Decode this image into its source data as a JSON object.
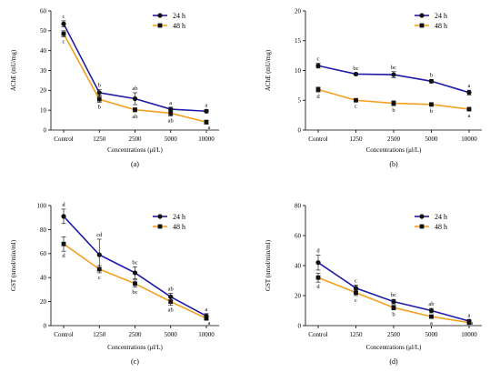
{
  "chart_data": [
    {
      "type": "line",
      "panel_label": "(a)",
      "categories": [
        "Control",
        "1250",
        "2500",
        "5000",
        "10000"
      ],
      "xlabel": "Concentrations (μl/L)",
      "ylabel": "AChE (mU/mg)",
      "ylim": [
        0,
        60
      ],
      "yticks": [
        0,
        10,
        20,
        30,
        40,
        50,
        60
      ],
      "grid": false,
      "legend_position": "top-right",
      "series": [
        {
          "name": "24 h",
          "color": "#1f1aa6",
          "marker": "circle",
          "values": [
            53.5,
            18.8,
            15.8,
            10.5,
            9.5
          ],
          "errors": [
            1.5,
            1.5,
            3.0,
            1.0,
            0.8
          ],
          "letters": [
            "c",
            "b",
            "ab",
            "a",
            "a"
          ]
        },
        {
          "name": "48 h",
          "color": "#f5a020",
          "marker": "square",
          "values": [
            48.5,
            15.5,
            10.2,
            8.5,
            4.0
          ],
          "errors": [
            1.5,
            1.5,
            1.0,
            1.5,
            1.0
          ],
          "letters": [
            "c",
            "b",
            "ab",
            "ab",
            "a"
          ]
        }
      ]
    },
    {
      "type": "line",
      "panel_label": "(b)",
      "categories": [
        "Control",
        "1250",
        "2500",
        "5000",
        "10000"
      ],
      "xlabel": "Concentrations (μl/L)",
      "ylabel": "AChE (mU/mg)",
      "ylim": [
        0,
        20
      ],
      "yticks": [
        0,
        5,
        10,
        15,
        20
      ],
      "grid": false,
      "legend_position": "top-right",
      "series": [
        {
          "name": "24 h",
          "color": "#1f1aa6",
          "marker": "circle",
          "values": [
            10.8,
            9.4,
            9.3,
            8.2,
            6.3
          ],
          "errors": [
            0.4,
            0.2,
            0.5,
            0.3,
            0.4
          ],
          "letters": [
            "c",
            "bc",
            "bc",
            "b",
            "a"
          ]
        },
        {
          "name": "48 h",
          "color": "#f5a020",
          "marker": "square",
          "values": [
            6.8,
            5.0,
            4.5,
            4.3,
            3.5
          ],
          "errors": [
            0.4,
            0.2,
            0.4,
            0.3,
            0.3
          ],
          "letters": [
            "d",
            "c",
            "b",
            "b",
            "a"
          ]
        }
      ]
    },
    {
      "type": "line",
      "panel_label": "(c)",
      "categories": [
        "Control",
        "1250",
        "2500",
        "5000",
        "10000"
      ],
      "xlabel": "Concentrations (μl/L)",
      "ylabel": "GST (nmol/min/ml)",
      "ylim": [
        0,
        100
      ],
      "yticks": [
        0,
        20,
        40,
        60,
        80,
        100
      ],
      "grid": false,
      "legend_position": "top-right",
      "series": [
        {
          "name": "24 h",
          "color": "#1f1aa6",
          "marker": "circle",
          "values": [
            91,
            59,
            44,
            24,
            8
          ],
          "errors": [
            6,
            13,
            5,
            3,
            2
          ],
          "letters": [
            "d",
            "cd",
            "bc",
            "ab",
            "a"
          ]
        },
        {
          "name": "48 h",
          "color": "#f5a020",
          "marker": "square",
          "values": [
            68,
            47,
            35,
            20,
            6
          ],
          "errors": [
            6,
            3,
            3,
            3,
            1
          ],
          "letters": [
            "d",
            "c",
            "bc",
            "ab",
            "a"
          ]
        }
      ]
    },
    {
      "type": "line",
      "panel_label": "(d)",
      "categories": [
        "Control",
        "1250",
        "2500",
        "5000",
        "10000"
      ],
      "xlabel": "Concentrations (μl/L)",
      "ylabel": "GST (nmol/min/ml)",
      "ylim": [
        0,
        80
      ],
      "yticks": [
        0,
        20,
        40,
        60,
        80
      ],
      "grid": false,
      "legend_position": "top-right",
      "series": [
        {
          "name": "24 h",
          "color": "#1f1aa6",
          "marker": "circle",
          "values": [
            42,
            25,
            16,
            10,
            3
          ],
          "errors": [
            5,
            2,
            1.5,
            1.5,
            1
          ],
          "letters": [
            "d",
            "c",
            "bc",
            "ab",
            "a"
          ]
        },
        {
          "name": "48 h",
          "color": "#f5a020",
          "marker": "square",
          "values": [
            32,
            22,
            12,
            6,
            2
          ],
          "errors": [
            3,
            2,
            1.5,
            1,
            0.5
          ],
          "letters": [
            "d",
            "c",
            "b",
            "a",
            "a"
          ]
        }
      ]
    }
  ]
}
